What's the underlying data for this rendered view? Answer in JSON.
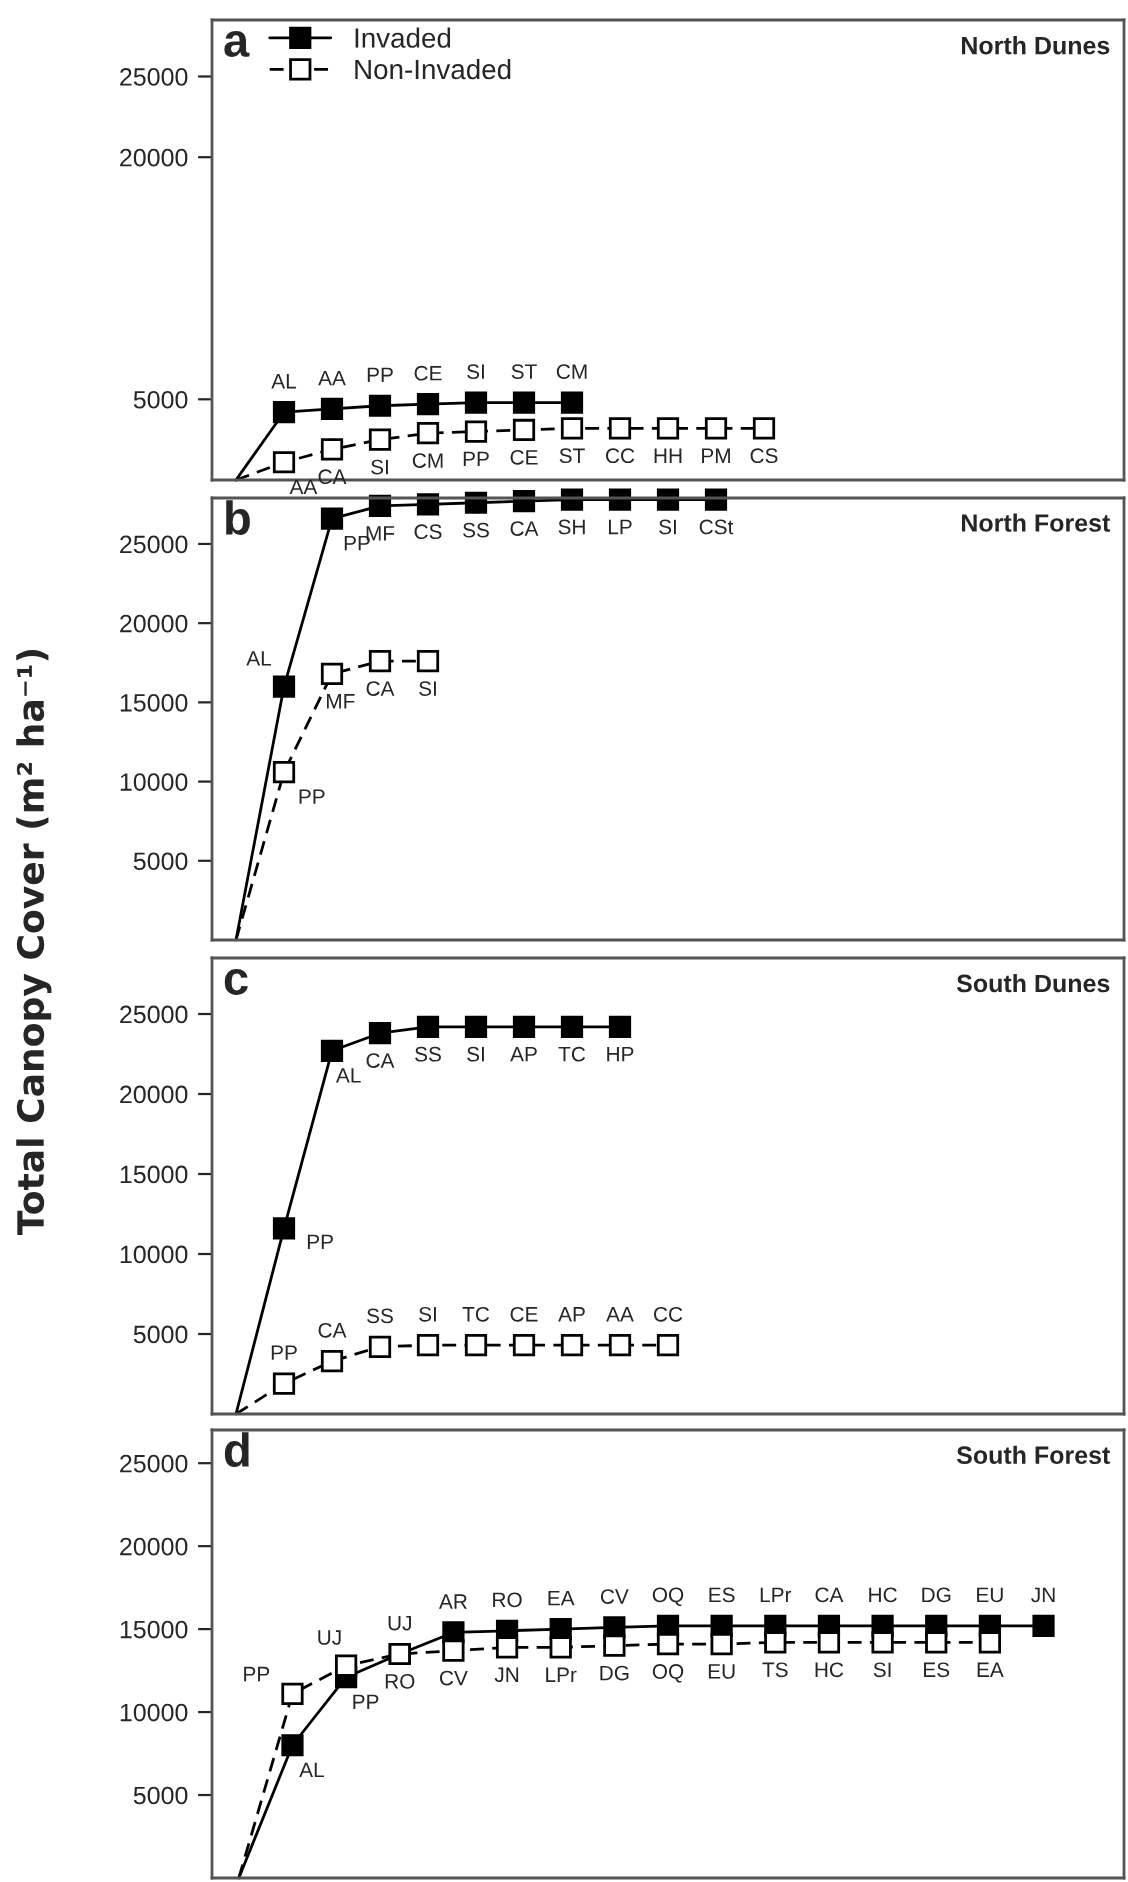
{
  "chart_data": [
    {
      "type": "line",
      "title": "North Dunes",
      "annotations": [
        "a"
      ],
      "categories": [
        null,
        null,
        null,
        null,
        null,
        null,
        null,
        null,
        null,
        null,
        null,
        null,
        null,
        null,
        null,
        null,
        null,
        null,
        null
      ],
      "ylim": [
        0,
        28500
      ],
      "yticks": [
        5000,
        20000,
        25000
      ],
      "tick_labels": "y",
      "grid": false,
      "legend": "top left",
      "marker": "square",
      "series": [
        {
          "name": "Invaded",
          "color": "#000000",
          "line_style": "solid",
          "values": [
            0,
            4200,
            4400,
            4600,
            4700,
            4800,
            4800,
            4800,
            null,
            null,
            null,
            null,
            null,
            null,
            null,
            null,
            null,
            null,
            null
          ],
          "value_labels": [
            null,
            "AL",
            "AA",
            "PP",
            "CE",
            "SI",
            "ST",
            "CM",
            null,
            null,
            null,
            null,
            null,
            null,
            null,
            null,
            null,
            null,
            null
          ]
        },
        {
          "name": "Non-Invaded",
          "color": "#ffffff",
          "line_style": "dashed",
          "values": [
            0,
            1100,
            1900,
            2500,
            2900,
            3000,
            3100,
            3200,
            3200,
            3200,
            3200,
            3200,
            null,
            null,
            null,
            null,
            null,
            null,
            null
          ],
          "value_labels": [
            null,
            "AA",
            "CA",
            "SI",
            "CM",
            "PP",
            "CE",
            "ST",
            "CC",
            "HH",
            "PM",
            "CS",
            null,
            null,
            null,
            null,
            null,
            null,
            null
          ]
        }
      ]
    },
    {
      "type": "line",
      "title": "North Forest",
      "annotations": [
        "b"
      ],
      "ylabel": "Total Canopy Cover (m² ha⁻¹)",
      "categories": [
        null,
        null,
        null,
        null,
        null,
        null,
        null,
        null,
        null,
        null,
        null,
        null,
        null,
        null,
        null,
        null,
        null,
        null,
        null
      ],
      "ylim": [
        0,
        27900
      ],
      "yticks": [
        5000,
        10000,
        15000,
        20000,
        25000
      ],
      "tick_labels": "y",
      "grid": false,
      "marker": "square",
      "series": [
        {
          "color": "#000000",
          "line_style": "solid",
          "values": [
            0,
            16000,
            26600,
            27400,
            27500,
            27600,
            27700,
            27800,
            27800,
            27800,
            27800,
            null,
            null,
            null,
            null,
            null,
            null,
            null,
            null
          ],
          "value_labels": [
            null,
            "AL",
            "PP",
            "MF",
            "CS",
            "SS",
            "CA",
            "SH",
            "LP",
            "SI",
            "CSt",
            null,
            null,
            null,
            null,
            null,
            null,
            null,
            null
          ]
        },
        {
          "color": "#ffffff",
          "line_style": "dashed",
          "values": [
            0,
            10600,
            16800,
            17600,
            17600,
            null,
            null,
            null,
            null,
            null,
            null,
            null,
            null,
            null,
            null,
            null,
            null,
            null,
            null
          ],
          "value_labels": [
            null,
            "PP",
            "MF",
            "CA",
            "SI",
            null,
            null,
            null,
            null,
            null,
            null,
            null,
            null,
            null,
            null,
            null,
            null,
            null,
            null
          ]
        }
      ]
    },
    {
      "type": "line",
      "title": "South Dunes",
      "annotations": [
        "c"
      ],
      "categories": [
        null,
        null,
        null,
        null,
        null,
        null,
        null,
        null,
        null,
        null,
        null,
        null,
        null,
        null,
        null,
        null,
        null,
        null,
        null
      ],
      "ylim": [
        0,
        28500
      ],
      "yticks": [
        5000,
        10000,
        15000,
        20000,
        25000
      ],
      "tick_labels": "y",
      "grid": false,
      "marker": "square",
      "series": [
        {
          "color": "#000000",
          "line_style": "solid",
          "values": [
            0,
            11600,
            22700,
            23800,
            24200,
            24200,
            24200,
            24200,
            24200,
            null,
            null,
            null,
            null,
            null,
            null,
            null,
            null,
            null,
            null
          ],
          "value_labels": [
            null,
            "PP",
            "AL",
            "CA",
            "SS",
            "SI",
            "AP",
            "TC",
            "HP",
            null,
            null,
            null,
            null,
            null,
            null,
            null,
            null,
            null,
            null
          ]
        },
        {
          "color": "#ffffff",
          "line_style": "dashed",
          "values": [
            0,
            1900,
            3300,
            4200,
            4300,
            4300,
            4300,
            4300,
            4300,
            4300,
            null,
            null,
            null,
            null,
            null,
            null,
            null,
            null,
            null
          ],
          "value_labels": [
            null,
            "PP",
            "CA",
            "SS",
            "SI",
            "TC",
            "CE",
            "AP",
            "AA",
            "CC",
            null,
            null,
            null,
            null,
            null,
            null,
            null,
            null,
            null
          ]
        }
      ]
    },
    {
      "type": "line",
      "title": "South Forest",
      "annotations": [
        "d"
      ],
      "categories": [
        null,
        null,
        null,
        null,
        null,
        null,
        null,
        null,
        null,
        null,
        null,
        null,
        null,
        null,
        null,
        null,
        null
      ],
      "ylim": [
        0,
        27000
      ],
      "yticks": [
        5000,
        10000,
        15000,
        20000,
        25000
      ],
      "tick_labels": "y",
      "grid": false,
      "marker": "square",
      "series": [
        {
          "color": "#000000",
          "line_style": "solid",
          "values": [
            0,
            8000,
            12100,
            13500,
            14800,
            14900,
            15000,
            15100,
            15200,
            15200,
            15200,
            15200,
            15200,
            15200,
            15200,
            15200,
            null
          ],
          "value_labels": [
            null,
            "AL",
            "PP",
            "UJ",
            "AR",
            "RO",
            "EA",
            "CV",
            "OQ",
            "ES",
            "LPr",
            "CA",
            "HC",
            "DG",
            "EU",
            "JN",
            null
          ]
        },
        {
          "color": "#ffffff",
          "line_style": "dashed",
          "values": [
            0,
            11100,
            12800,
            13500,
            13700,
            13900,
            13900,
            14000,
            14100,
            14100,
            14200,
            14200,
            14200,
            14200,
            14200,
            null,
            null
          ],
          "value_labels": [
            null,
            "PP",
            "UJ",
            "RO",
            "CV",
            "JN",
            "LPr",
            "DG",
            "OQ",
            "EU",
            "TS",
            "HC",
            "SI",
            "ES",
            "EA",
            null,
            null
          ]
        }
      ]
    }
  ]
}
